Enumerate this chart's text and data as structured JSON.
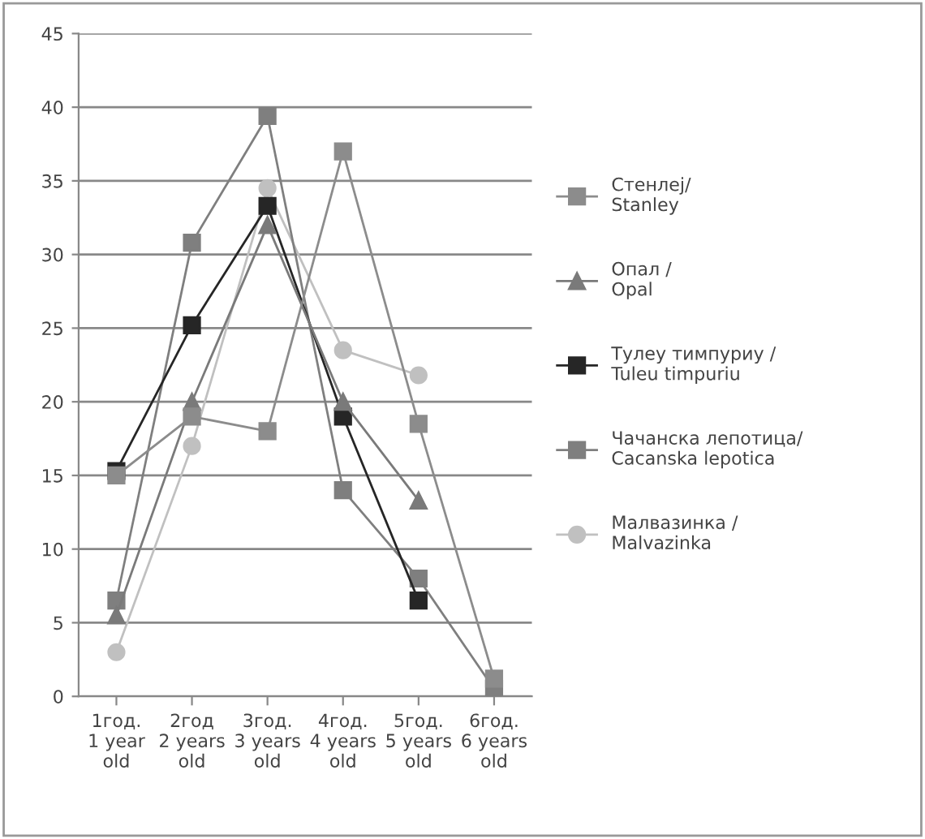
{
  "chart_data": {
    "type": "line",
    "categories": [
      "1год.\n1 year\nold",
      "2год\n2 years\nold",
      "3год.\n3 years\nold",
      "4год.\n4 years\nold",
      "5год.\n5 years\nold",
      "6год.\n6 years\nold"
    ],
    "series": [
      {
        "name": "Стенлеј/\nStanley",
        "color": "#8c8c8c",
        "marker": "square",
        "values": [
          15,
          19,
          18,
          37,
          18.5,
          1.2
        ]
      },
      {
        "name": "Опал /\nOpal",
        "color": "#7a7a7a",
        "marker": "triangle",
        "values": [
          5.5,
          20,
          32,
          20,
          13.3,
          null
        ]
      },
      {
        "name": "Тулеу тимпуриу /\nTuleu timpuriu",
        "color": "#262626",
        "marker": "square",
        "values": [
          15.3,
          25.2,
          33.3,
          19,
          6.5,
          null
        ]
      },
      {
        "name": "Чачанска лепотица/\nCacanska lepotica",
        "color": "#7f7f7f",
        "marker": "square",
        "values": [
          6.5,
          30.8,
          39.4,
          14,
          8,
          0.5
        ]
      },
      {
        "name": "Малвазинка /\nMalvazinka",
        "color": "#c0c0c0",
        "marker": "circle",
        "values": [
          3,
          17,
          34.5,
          23.5,
          21.8,
          null
        ]
      }
    ],
    "ylim": [
      0,
      45
    ],
    "yticks": [
      0,
      5,
      10,
      15,
      20,
      25,
      30,
      35,
      40,
      45
    ],
    "grid": "y",
    "legend": "right"
  }
}
